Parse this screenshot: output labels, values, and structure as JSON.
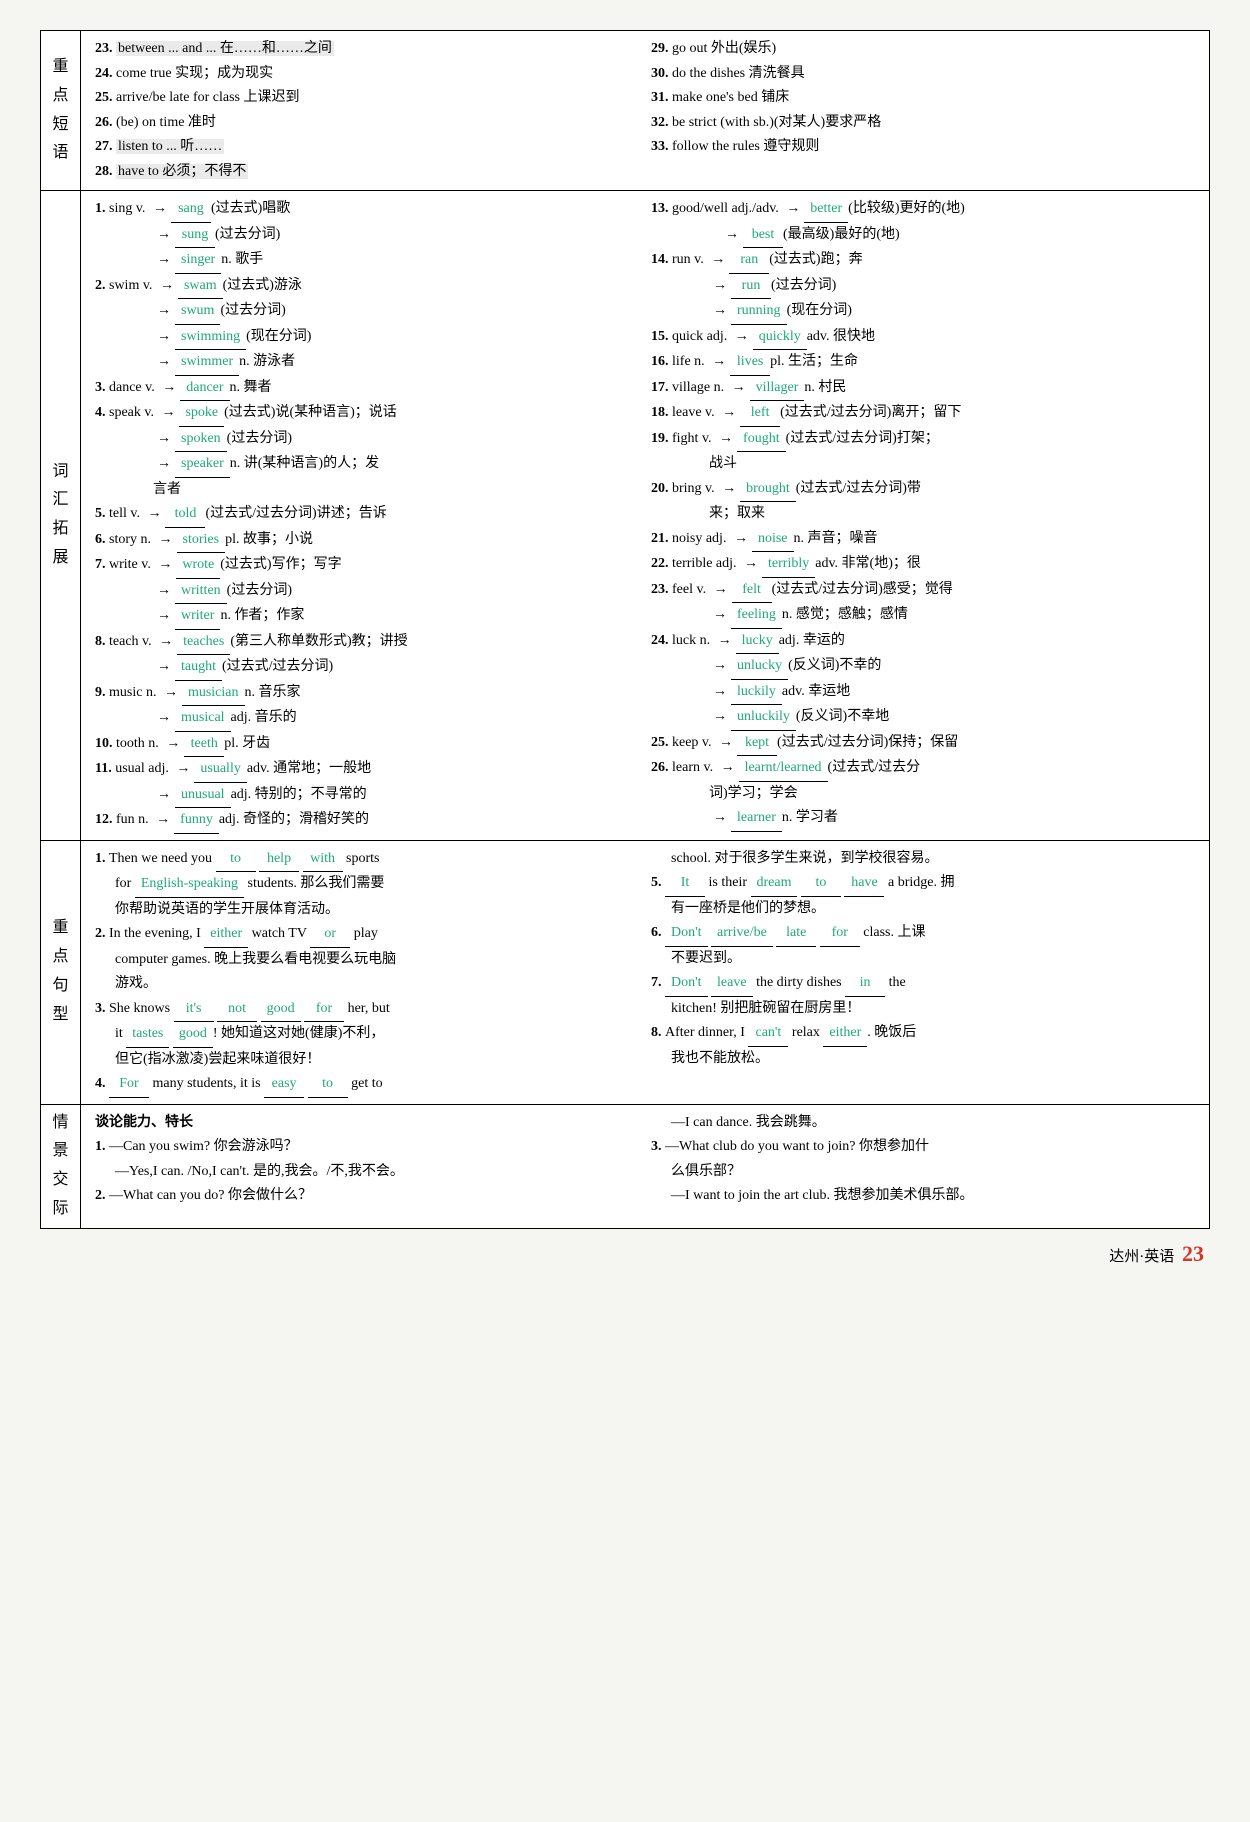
{
  "colors": {
    "answer": "#1fa87a",
    "page_num": "#d0382b"
  },
  "sections": {
    "s1": {
      "label": "重点短语",
      "left": [
        {
          "n": "23.",
          "t": "between ... and ... 在……和……之间",
          "hl": true
        },
        {
          "n": "24.",
          "t": "come true 实现；成为现实"
        },
        {
          "n": "25.",
          "t": "arrive/be late for class 上课迟到"
        },
        {
          "n": "26.",
          "t": "(be) on time 准时"
        },
        {
          "n": "27.",
          "t": "listen to ... 听……",
          "hl": true
        },
        {
          "n": "28.",
          "t": "have to 必须；不得不",
          "hl": true
        }
      ],
      "right": [
        {
          "n": "29.",
          "t": "go out 外出(娱乐)"
        },
        {
          "n": "30.",
          "t": "do the dishes 清洗餐具"
        },
        {
          "n": "31.",
          "t": "make one's bed 铺床"
        },
        {
          "n": "32.",
          "t": "be strict (with sb.)(对某人)要求严格"
        },
        {
          "n": "33.",
          "t": "follow the rules 遵守规则"
        }
      ]
    },
    "s2": {
      "label": "词汇拓展",
      "left": [
        {
          "n": "1.",
          "h": "sing v.",
          "a": "sang",
          "d": "(过去式)唱歌"
        },
        {
          "n": "",
          "h": "",
          "a": "sung",
          "d": "(过去分词)",
          "ind": true
        },
        {
          "n": "",
          "h": "",
          "a": "singer",
          "d": "n. 歌手",
          "ind": true
        },
        {
          "n": "2.",
          "h": "swim v.",
          "a": "swam",
          "d": "(过去式)游泳"
        },
        {
          "n": "",
          "h": "",
          "a": "swum",
          "d": "(过去分词)",
          "ind": true
        },
        {
          "n": "",
          "h": "",
          "a": "swimming",
          "d": "(现在分词)",
          "ind": true
        },
        {
          "n": "",
          "h": "",
          "a": "swimmer",
          "d": "n. 游泳者",
          "ind": true
        },
        {
          "n": "3.",
          "h": "dance v.",
          "a": "dancer",
          "d": "n. 舞者"
        },
        {
          "n": "4.",
          "h": "speak v.",
          "a": "spoke",
          "d": "(过去式)说(某种语言)；说话"
        },
        {
          "n": "",
          "h": "",
          "a": "spoken",
          "d": "(过去分词)",
          "ind": true
        },
        {
          "n": "",
          "h": "",
          "a": "speaker",
          "d": "n. 讲(某种语言)的人；发",
          "ind": true
        },
        {
          "n": "",
          "h": "",
          "a": "",
          "d": "言者",
          "ind": true,
          "noarrow": true
        },
        {
          "n": "5.",
          "h": "tell v.",
          "a": "told",
          "d": "(过去式/过去分词)讲述；告诉"
        },
        {
          "n": "6.",
          "h": "story n.",
          "a": "stories",
          "d": "pl. 故事；小说"
        },
        {
          "n": "7.",
          "h": "write v.",
          "a": "wrote",
          "d": "(过去式)写作；写字"
        },
        {
          "n": "",
          "h": "",
          "a": "written",
          "d": "(过去分词)",
          "ind": true
        },
        {
          "n": "",
          "h": "",
          "a": "writer",
          "d": "n. 作者；作家",
          "ind": true
        },
        {
          "n": "8.",
          "h": "teach v.",
          "a": "teaches",
          "d": "(第三人称单数形式)教；讲授"
        },
        {
          "n": "",
          "h": "",
          "a": "taught",
          "d": "(过去式/过去分词)",
          "ind": true
        },
        {
          "n": "9.",
          "h": "music n.",
          "a": "musician",
          "d": "n. 音乐家"
        },
        {
          "n": "",
          "h": "",
          "a": "musical",
          "d": "adj. 音乐的",
          "ind": true
        },
        {
          "n": "10.",
          "h": "tooth n.",
          "a": "teeth",
          "d": "pl. 牙齿"
        },
        {
          "n": "11.",
          "h": "usual adj.",
          "a": "usually",
          "d": "adv. 通常地；一般地"
        },
        {
          "n": "",
          "h": "",
          "a": "unusual",
          "d": "adj. 特别的；不寻常的",
          "ind": true
        },
        {
          "n": "12.",
          "h": "fun n.",
          "a": "funny",
          "d": "adj. 奇怪的；滑稽好笑的"
        }
      ],
      "right": [
        {
          "n": "13.",
          "h": "good/well adj./adv.",
          "a": "better",
          "d": "(比较级)更好的(地)"
        },
        {
          "n": "",
          "h": "",
          "a": "best",
          "d": "(最高级)最好的(地)",
          "ind": true,
          "ind2": true
        },
        {
          "n": "14.",
          "h": "run v.",
          "a": "ran",
          "d": "(过去式)跑；奔"
        },
        {
          "n": "",
          "h": "",
          "a": "run",
          "d": "(过去分词)",
          "ind": true
        },
        {
          "n": "",
          "h": "",
          "a": "running",
          "d": "(现在分词)",
          "ind": true
        },
        {
          "n": "15.",
          "h": "quick adj.",
          "a": "quickly",
          "d": "adv. 很快地"
        },
        {
          "n": "16.",
          "h": "life n.",
          "a": "lives",
          "d": "pl. 生活；生命"
        },
        {
          "n": "17.",
          "h": "village n.",
          "a": "villager",
          "d": "n. 村民"
        },
        {
          "n": "18.",
          "h": "leave v.",
          "a": "left",
          "d": "(过去式/过去分词)离开；留下"
        },
        {
          "n": "19.",
          "h": "fight v.",
          "a": "fought",
          "d": "(过去式/过去分词)打架；"
        },
        {
          "n": "",
          "h": "",
          "a": "",
          "d": "战斗",
          "ind": true,
          "noarrow": true
        },
        {
          "n": "20.",
          "h": "bring v.",
          "a": "brought",
          "d": "(过去式/过去分词)带"
        },
        {
          "n": "",
          "h": "",
          "a": "",
          "d": "来；取来",
          "ind": true,
          "noarrow": true
        },
        {
          "n": "21.",
          "h": "noisy adj.",
          "a": "noise",
          "d": "n. 声音；噪音"
        },
        {
          "n": "22.",
          "h": "terrible adj.",
          "a": "terribly",
          "d": "adv. 非常(地)；很"
        },
        {
          "n": "23.",
          "h": "feel v.",
          "a": "felt",
          "d": "(过去式/过去分词)感受；觉得"
        },
        {
          "n": "",
          "h": "",
          "a": "feeling",
          "d": "n. 感觉；感触；感情",
          "ind": true
        },
        {
          "n": "24.",
          "h": "luck n.",
          "a": "lucky",
          "d": "adj. 幸运的"
        },
        {
          "n": "",
          "h": "",
          "a": "unlucky",
          "d": "(反义词)不幸的",
          "ind": true
        },
        {
          "n": "",
          "h": "",
          "a": "luckily",
          "d": "adv. 幸运地",
          "ind": true
        },
        {
          "n": "",
          "h": "",
          "a": "unluckily",
          "d": "(反义词)不幸地",
          "ind": true
        },
        {
          "n": "25.",
          "h": "keep v.",
          "a": "kept",
          "d": "(过去式/过去分词)保持；保留"
        },
        {
          "n": "26.",
          "h": "learn v.",
          "a": "learnt/learned",
          "d": "(过去式/过去分"
        },
        {
          "n": "",
          "h": "",
          "a": "",
          "d": "词)学习；学会",
          "ind": true,
          "noarrow": true
        },
        {
          "n": "",
          "h": "",
          "a": "learner",
          "d": "n. 学习者",
          "ind": true
        }
      ]
    },
    "s3": {
      "label": "重点句型",
      "left": [
        {
          "n": "1.",
          "parts": [
            {
              "t": "Then we need you "
            },
            {
              "a": "to"
            },
            {
              "t": " "
            },
            {
              "a": "help"
            },
            {
              "t": " "
            },
            {
              "a": "with"
            },
            {
              "t": " sports"
            }
          ]
        },
        {
          "n": "",
          "parts": [
            {
              "t": "for "
            },
            {
              "a": "English-speaking"
            },
            {
              "t": " students. 那么我们需要"
            }
          ],
          "ind": true
        },
        {
          "n": "",
          "parts": [
            {
              "t": "你帮助说英语的学生开展体育活动。"
            }
          ],
          "ind": true
        },
        {
          "n": "2.",
          "parts": [
            {
              "t": "In the evening, I "
            },
            {
              "a": "either"
            },
            {
              "t": " watch TV "
            },
            {
              "a": "or"
            },
            {
              "t": " play"
            }
          ]
        },
        {
          "n": "",
          "parts": [
            {
              "t": "computer games. 晚上我要么看电视要么玩电脑"
            }
          ],
          "ind": true
        },
        {
          "n": "",
          "parts": [
            {
              "t": "游戏。"
            }
          ],
          "ind": true
        },
        {
          "n": "3.",
          "parts": [
            {
              "t": "She knows "
            },
            {
              "a": "it's"
            },
            {
              "t": " "
            },
            {
              "a": "not"
            },
            {
              "t": " "
            },
            {
              "a": "good"
            },
            {
              "t": " "
            },
            {
              "a": "for"
            },
            {
              "t": " her, but"
            }
          ]
        },
        {
          "n": "",
          "parts": [
            {
              "t": "it "
            },
            {
              "a": "tastes"
            },
            {
              "t": " "
            },
            {
              "a": "good"
            },
            {
              "t": "! 她知道这对她(健康)不利，"
            }
          ],
          "ind": true
        },
        {
          "n": "",
          "parts": [
            {
              "t": "但它(指冰激凌)尝起来味道很好！"
            }
          ],
          "ind": true
        },
        {
          "n": "4.",
          "parts": [
            {
              "a": "For"
            },
            {
              "t": " many students, it is "
            },
            {
              "a": "easy"
            },
            {
              "t": " "
            },
            {
              "a": "to"
            },
            {
              "t": " get to"
            }
          ]
        }
      ],
      "right": [
        {
          "n": "",
          "parts": [
            {
              "t": "school. 对于很多学生来说，到学校很容易。"
            }
          ],
          "ind": true
        },
        {
          "n": "5.",
          "parts": [
            {
              "a": "It"
            },
            {
              "t": " is their "
            },
            {
              "a": "dream"
            },
            {
              "t": " "
            },
            {
              "a": "to"
            },
            {
              "t": " "
            },
            {
              "a": "have"
            },
            {
              "t": " a bridge. 拥"
            }
          ]
        },
        {
          "n": "",
          "parts": [
            {
              "t": "有一座桥是他们的梦想。"
            }
          ],
          "ind": true
        },
        {
          "n": "6.",
          "parts": [
            {
              "a": "Don't"
            },
            {
              "t": " "
            },
            {
              "a": "arrive/be"
            },
            {
              "t": " "
            },
            {
              "a": "late"
            },
            {
              "t": " "
            },
            {
              "a": "for"
            },
            {
              "t": " class. 上课"
            }
          ]
        },
        {
          "n": "",
          "parts": [
            {
              "t": "不要迟到。"
            }
          ],
          "ind": true
        },
        {
          "n": "7.",
          "parts": [
            {
              "a": "Don't"
            },
            {
              "t": " "
            },
            {
              "a": "leave"
            },
            {
              "t": " the dirty dishes "
            },
            {
              "a": "in"
            },
            {
              "t": " the"
            }
          ]
        },
        {
          "n": "",
          "parts": [
            {
              "t": "kitchen! 别把脏碗留在厨房里！"
            }
          ],
          "ind": true
        },
        {
          "n": "8.",
          "parts": [
            {
              "t": "After dinner, I "
            },
            {
              "a": "can't"
            },
            {
              "t": " relax "
            },
            {
              "a": "either"
            },
            {
              "t": ". 晚饭后"
            }
          ]
        },
        {
          "n": "",
          "parts": [
            {
              "t": "我也不能放松。"
            }
          ],
          "ind": true
        }
      ]
    },
    "s4": {
      "label": "情景交际",
      "left": [
        {
          "b": true,
          "t": "谈论能力、特长"
        },
        {
          "n": "1.",
          "t": "—Can you swim? 你会游泳吗？"
        },
        {
          "n": "",
          "t": "—Yes,I can. /No,I can't. 是的,我会。/不,我不会。",
          "ind": true
        },
        {
          "n": "2.",
          "t": "—What can you do? 你会做什么？"
        }
      ],
      "right": [
        {
          "n": "",
          "t": "—I can dance. 我会跳舞。",
          "ind": true
        },
        {
          "n": "3.",
          "t": "—What club do you want to join? 你想参加什"
        },
        {
          "n": "",
          "t": "么俱乐部？",
          "ind": true
        },
        {
          "n": "",
          "t": "—I want to join the art club. 我想参加美术俱乐部。",
          "ind": true
        }
      ]
    }
  },
  "footer": {
    "text": "达州·英语",
    "page": "23"
  }
}
